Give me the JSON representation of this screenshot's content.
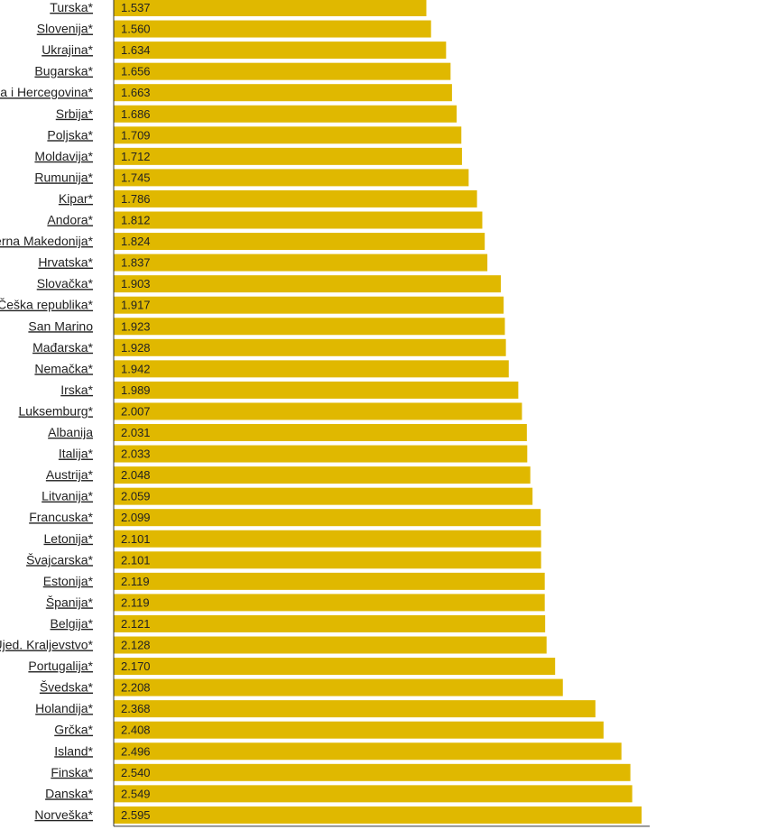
{
  "chart_data": {
    "type": "bar",
    "orientation": "horizontal",
    "categories": [
      "Turska*",
      "Slovenija*",
      "Ukrajina*",
      "Bugarska*",
      "Bosna i Hercegovina*",
      "Srbija*",
      "Poljska*",
      "Moldavija*",
      "Rumunija*",
      "Kipar*",
      "Andora*",
      "Severna Makedonija*",
      "Hrvatska*",
      "Slovačka*",
      "Češka republika*",
      "San Marino",
      "Mađarska*",
      "Nemačka*",
      "Irska*",
      "Luksemburg*",
      "Albanija",
      "Italija*",
      "Austrija*",
      "Litvanija*",
      "Francuska*",
      "Letonija*",
      "Švajcarska*",
      "Estonija*",
      "Španija*",
      "Belgija*",
      "Ujed. Kraljevstvo*",
      "Portugalija*",
      "Švedska*",
      "Holandija*",
      "Grčka*",
      "Island*",
      "Finska*",
      "Danska*",
      "Norveška*"
    ],
    "values": [
      1.537,
      1.56,
      1.634,
      1.656,
      1.663,
      1.686,
      1.709,
      1.712,
      1.745,
      1.786,
      1.812,
      1.824,
      1.837,
      1.903,
      1.917,
      1.923,
      1.928,
      1.942,
      1.989,
      2.007,
      2.031,
      2.033,
      2.048,
      2.059,
      2.099,
      2.101,
      2.101,
      2.119,
      2.119,
      2.121,
      2.128,
      2.17,
      2.208,
      2.368,
      2.408,
      2.496,
      2.54,
      2.549,
      2.595
    ],
    "value_labels": [
      "1.537",
      "1.560",
      "1.634",
      "1.656",
      "1.663",
      "1.686",
      "1.709",
      "1.712",
      "1.745",
      "1.786",
      "1.812",
      "1.824",
      "1.837",
      "1.903",
      "1.917",
      "1.923",
      "1.928",
      "1.942",
      "1.989",
      "2.007",
      "2.031",
      "2.033",
      "2.048",
      "2.059",
      "2.099",
      "2.101",
      "2.101",
      "2.119",
      "2.119",
      "2.121",
      "2.128",
      "2.170",
      "2.208",
      "2.368",
      "2.408",
      "2.496",
      "2.540",
      "2.549",
      "2.595"
    ],
    "xlim": [
      0,
      2.6
    ],
    "bar_color": "#e0b800",
    "axis_color": "#333333",
    "grid": false,
    "legend": "none"
  }
}
